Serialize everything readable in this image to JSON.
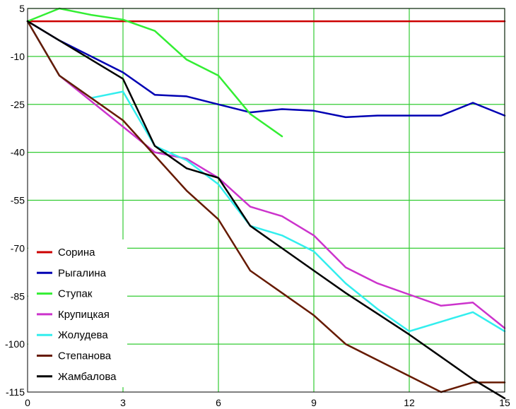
{
  "chart_data": {
    "type": "line",
    "xlim": [
      0,
      15
    ],
    "ylim": [
      -115,
      5
    ],
    "x_ticks": [
      0,
      3,
      6,
      9,
      12,
      15
    ],
    "y_ticks": [
      5,
      -10,
      -25,
      -40,
      -55,
      -70,
      -85,
      -100,
      -115
    ],
    "x_tick_labels": [
      "0",
      "3",
      "6",
      "9",
      "12",
      "15"
    ],
    "y_tick_labels": [
      "5",
      "-10",
      "-25",
      "-40",
      "-55",
      "-70",
      "-85",
      "-100",
      "-115"
    ],
    "grid": true,
    "grid_color": "#33cc33",
    "legend_position": "bottom-left",
    "series": [
      {
        "name": "Сорина",
        "color": "#cc0000",
        "x": [
          0,
          15
        ],
        "y": [
          1,
          1
        ]
      },
      {
        "name": "Рыгалина",
        "color": "#0000b3",
        "x": [
          0,
          1,
          2,
          3,
          4,
          5,
          6,
          7,
          8,
          9,
          10,
          11,
          12,
          13,
          14,
          15
        ],
        "y": [
          1,
          -5,
          -10,
          -15,
          -22,
          -22.5,
          -25,
          -27.5,
          -26.5,
          -27,
          -29,
          -28.5,
          -28.5,
          -28.5,
          -24.5,
          -28.5
        ]
      },
      {
        "name": "Ступак",
        "color": "#33ee33",
        "x": [
          0,
          1,
          2,
          3,
          4,
          5,
          6,
          7,
          8
        ],
        "y": [
          1,
          5,
          3,
          1.5,
          -2,
          -11,
          -16,
          -28,
          -35
        ]
      },
      {
        "name": "Крупицкая",
        "color": "#cc33cc",
        "x": [
          0,
          1,
          2,
          3,
          4,
          5,
          6,
          7,
          8,
          9,
          10,
          11,
          12,
          13,
          14,
          15
        ],
        "y": [
          1,
          -16,
          -24,
          -32,
          -40,
          -42,
          -48,
          -57,
          -60,
          -66,
          -76,
          -81,
          -84.5,
          -88,
          -87,
          -95
        ]
      },
      {
        "name": "Жолудева",
        "color": "#33eeee",
        "x": [
          0,
          1,
          2,
          3,
          4,
          5,
          6,
          7,
          8,
          9,
          10,
          11,
          12,
          13,
          14,
          15
        ],
        "y": [
          1,
          -16,
          -23,
          -21,
          -38,
          -42.5,
          -50,
          -63,
          -66,
          -71,
          -81,
          -89,
          -96,
          -93,
          -90,
          -96
        ]
      },
      {
        "name": "Степанова",
        "color": "#661a00",
        "x": [
          0,
          1,
          2,
          3,
          4,
          5,
          6,
          7,
          8,
          9,
          10,
          11,
          12,
          13,
          14,
          15
        ],
        "y": [
          1,
          -16,
          -23,
          -30,
          -41,
          -52,
          -61,
          -77,
          -84,
          -91,
          -100,
          -105,
          -110,
          -115,
          -112,
          -112
        ]
      },
      {
        "name": "Жамбалова",
        "color": "#000000",
        "x": [
          0,
          1,
          2,
          3,
          4,
          5,
          6,
          7,
          8,
          9,
          10,
          11,
          12,
          13,
          14,
          15
        ],
        "y": [
          1,
          -5,
          -11,
          -17,
          -38,
          -45,
          -48,
          -63,
          -70,
          -77,
          -84,
          -90.5,
          -97,
          -104,
          -111,
          -117
        ]
      }
    ]
  }
}
